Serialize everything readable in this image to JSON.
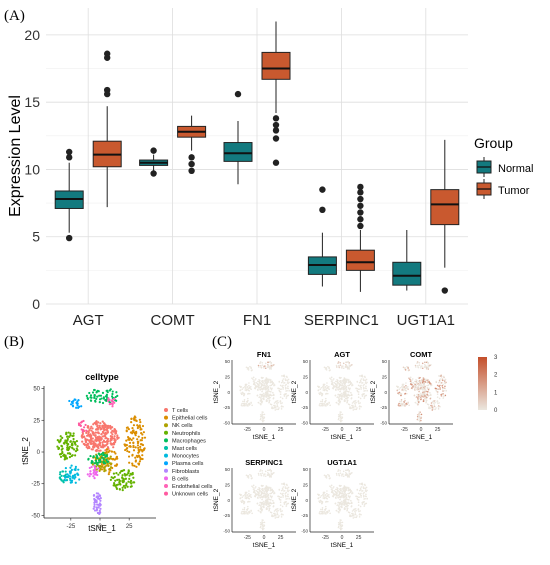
{
  "panels": {
    "a": "(A)",
    "b": "(B)",
    "c": "(C)"
  },
  "chart_data": [
    {
      "type": "box",
      "ylabel": "Expression Level",
      "ylim": [
        0,
        22
      ],
      "yticks": [
        0,
        5,
        10,
        15,
        20
      ],
      "categories": [
        "AGT",
        "COMT",
        "FN1",
        "SERPINC1",
        "UGT1A1"
      ],
      "legend": {
        "title": "Group",
        "placement": "right"
      },
      "series": [
        {
          "name": "Normal",
          "color": "#137a7f",
          "boxes": [
            {
              "whislo": 5.3,
              "q1": 7.1,
              "med": 7.8,
              "q3": 8.4,
              "whishi": 10.5,
              "fliers": [
                4.9,
                10.9,
                11.3
              ]
            },
            {
              "whislo": 9.8,
              "q1": 10.3,
              "med": 10.5,
              "q3": 10.7,
              "whishi": 11.1,
              "fliers": [
                9.7,
                11.4
              ]
            },
            {
              "whislo": 8.9,
              "q1": 10.6,
              "med": 11.2,
              "q3": 12.0,
              "whishi": 13.6,
              "fliers": [
                15.6
              ]
            },
            {
              "whislo": 1.3,
              "q1": 2.2,
              "med": 2.9,
              "q3": 3.5,
              "whishi": 5.3,
              "fliers": [
                7.0,
                8.5
              ]
            },
            {
              "whislo": 1.0,
              "q1": 1.4,
              "med": 2.1,
              "q3": 3.1,
              "whishi": 5.5,
              "fliers": []
            }
          ]
        },
        {
          "name": "Tumor",
          "color": "#c9592f",
          "boxes": [
            {
              "whislo": 7.2,
              "q1": 10.2,
              "med": 11.1,
              "q3": 12.1,
              "whishi": 14.7,
              "fliers": [
                15.6,
                15.9,
                18.3,
                18.6
              ]
            },
            {
              "whislo": 11.4,
              "q1": 12.4,
              "med": 12.8,
              "q3": 13.2,
              "whishi": 14.0,
              "fliers": [
                9.9,
                10.4,
                10.9
              ]
            },
            {
              "whislo": 14.2,
              "q1": 16.7,
              "med": 17.5,
              "q3": 18.7,
              "whishi": 21.0,
              "fliers": [
                10.5,
                12.3,
                12.9,
                13.3,
                13.8
              ]
            },
            {
              "whislo": 0.9,
              "q1": 2.5,
              "med": 3.1,
              "q3": 4.0,
              "whishi": 5.5,
              "fliers": [
                5.8,
                6.3,
                6.8,
                7.3,
                7.8,
                8.3,
                8.7
              ]
            },
            {
              "whislo": 2.7,
              "q1": 5.9,
              "med": 7.4,
              "q3": 8.5,
              "whishi": 12.2,
              "fliers": [
                1.0
              ]
            }
          ]
        }
      ]
    },
    {
      "type": "scatter",
      "title": "celltype",
      "xlabel": "tSNE_1",
      "ylabel": "tSNE_2",
      "xticks": [
        -25,
        0,
        25
      ],
      "yticks": [
        -50,
        -25,
        0,
        25,
        50
      ],
      "xlim": [
        -48,
        48
      ],
      "ylim": [
        -52,
        52
      ],
      "legend": [
        {
          "name": "T cells",
          "color": "#f8766d"
        },
        {
          "name": "Epithelial cells",
          "color": "#db8e00"
        },
        {
          "name": "NK cells",
          "color": "#aea200"
        },
        {
          "name": "Neutrophils",
          "color": "#64b200"
        },
        {
          "name": "Macrophages",
          "color": "#00bd5c"
        },
        {
          "name": "Mast cells",
          "color": "#00c1a7"
        },
        {
          "name": "Monocytes",
          "color": "#00bade"
        },
        {
          "name": "Plasma cells",
          "color": "#00a6ff"
        },
        {
          "name": "Fibroblasts",
          "color": "#b385ff"
        },
        {
          "name": "B cells",
          "color": "#ef67eb"
        },
        {
          "name": "Endothelial cells",
          "color": "#ff63b6"
        },
        {
          "name": "Unknown cells",
          "color": "#ff5aa0"
        }
      ],
      "clusters": [
        {
          "cell": "T cells",
          "cx": 0,
          "cy": 12,
          "rx": 16,
          "ry": 12,
          "n": 260
        },
        {
          "cell": "Epithelial cells",
          "cx": 30,
          "cy": 8,
          "rx": 9,
          "ry": 20,
          "n": 120
        },
        {
          "cell": "Epithelial cells",
          "cx": 8,
          "cy": -8,
          "rx": 8,
          "ry": 10,
          "n": 50
        },
        {
          "cell": "NK cells",
          "cx": 2,
          "cy": -8,
          "rx": 9,
          "ry": 8,
          "n": 70
        },
        {
          "cell": "Neutrophils",
          "cx": -28,
          "cy": 5,
          "rx": 9,
          "ry": 12,
          "n": 90
        },
        {
          "cell": "Neutrophils",
          "cx": 20,
          "cy": -22,
          "rx": 10,
          "ry": 9,
          "n": 70
        },
        {
          "cell": "Macrophages",
          "cx": 2,
          "cy": 44,
          "rx": 14,
          "ry": 6,
          "n": 60
        },
        {
          "cell": "Macrophages",
          "cx": -2,
          "cy": -6,
          "rx": 10,
          "ry": 5,
          "n": 40
        },
        {
          "cell": "Mast cells",
          "cx": -32,
          "cy": -20,
          "rx": 4,
          "ry": 5,
          "n": 20
        },
        {
          "cell": "Monocytes",
          "cx": -24,
          "cy": -18,
          "rx": 7,
          "ry": 7,
          "n": 40
        },
        {
          "cell": "Plasma cells",
          "cx": -22,
          "cy": 38,
          "rx": 6,
          "ry": 4,
          "n": 20
        },
        {
          "cell": "Fibroblasts",
          "cx": -2,
          "cy": -40,
          "rx": 4,
          "ry": 9,
          "n": 45
        },
        {
          "cell": "B cells",
          "cx": -6,
          "cy": -16,
          "rx": 5,
          "ry": 5,
          "n": 25
        },
        {
          "cell": "Endothelial cells",
          "cx": 10,
          "cy": 40,
          "rx": 4,
          "ry": 4,
          "n": 15
        },
        {
          "cell": "Unknown cells",
          "cx": -14,
          "cy": 20,
          "rx": 5,
          "ry": 4,
          "n": 15
        }
      ]
    },
    {
      "type": "scatter",
      "subtype": "feature-plots",
      "xlabel": "tSNE_1",
      "ylabel": "tSNE_2",
      "xticks": [
        -25,
        0,
        25
      ],
      "yticks": [
        -50,
        -25,
        0,
        25,
        50
      ],
      "xlim": [
        -48,
        48
      ],
      "ylim": [
        -52,
        52
      ],
      "colorbar": {
        "ticks": [
          0,
          1,
          2,
          3
        ],
        "low": "#ebe7df",
        "high": "#c44f2b"
      },
      "panels": [
        {
          "gene": "FN1",
          "max": 1.3
        },
        {
          "gene": "AGT",
          "max": 0.6
        },
        {
          "gene": "COMT",
          "max": 2.6
        },
        {
          "gene": "SERPINC1",
          "max": 0.0
        },
        {
          "gene": "UGT1A1",
          "max": 0.0
        }
      ]
    }
  ]
}
